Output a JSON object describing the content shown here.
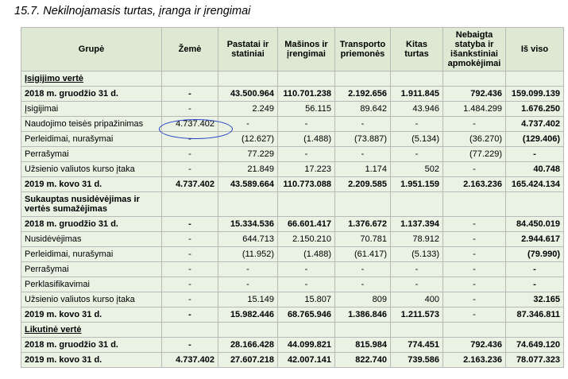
{
  "title": "15.7. Nekilnojamasis turtas, įranga ir įrengimai",
  "headers": [
    "Grupė",
    "Žemė",
    "Pastatai ir statiniai",
    "Mašinos ir įrengimai",
    "Transporto priemonės",
    "Kitas turtas",
    "Nebaigta statyba ir išankstiniai apmokėjimai",
    "Iš viso"
  ],
  "rows": [
    {
      "type": "section",
      "cells": [
        "Įsigijimo vertė"
      ]
    },
    {
      "type": "bold",
      "cells": [
        "2018 m. gruodžio 31 d.",
        "-",
        "43.500.964",
        "110.701.238",
        "2.192.656",
        "1.911.845",
        "792.436",
        "159.099.139"
      ]
    },
    {
      "type": "normal",
      "cells": [
        "Įsigijimai",
        "-",
        "2.249",
        "56.115",
        "89.642",
        "43.946",
        "1.484.299",
        "1.676.250"
      ]
    },
    {
      "type": "normal",
      "cells": [
        "Naudojimo teisės pripažinimas",
        "4.737.402",
        "-",
        "-",
        "-",
        "-",
        "-",
        "4.737.402"
      ]
    },
    {
      "type": "normal",
      "cells": [
        "Perleidimai, nurašymai",
        "-",
        "(12.627)",
        "(1.488)",
        "(73.887)",
        "(5.134)",
        "(36.270)",
        "(129.406)"
      ]
    },
    {
      "type": "normal",
      "cells": [
        "Perrašymai",
        "-",
        "77.229",
        "-",
        "-",
        "-",
        "(77.229)",
        "-"
      ]
    },
    {
      "type": "normal",
      "cells": [
        "Užsienio valiutos kurso įtaka",
        "-",
        "21.849",
        "17.223",
        "1.174",
        "502",
        "-",
        "40.748"
      ]
    },
    {
      "type": "bold",
      "cells": [
        "2019 m. kovo 31 d.",
        "4.737.402",
        "43.589.664",
        "110.773.088",
        "2.209.585",
        "1.951.159",
        "2.163.236",
        "165.424.134"
      ]
    },
    {
      "type": "section2",
      "cells": [
        "Sukauptas nusidėvėjimas ir vertės sumažėjimas"
      ]
    },
    {
      "type": "bold",
      "cells": [
        "2018 m. gruodžio 31 d.",
        "-",
        "15.334.536",
        "66.601.417",
        "1.376.672",
        "1.137.394",
        "-",
        "84.450.019"
      ]
    },
    {
      "type": "normal",
      "cells": [
        "Nusidėvėjimas",
        "-",
        "644.713",
        "2.150.210",
        "70.781",
        "78.912",
        "-",
        "2.944.617"
      ]
    },
    {
      "type": "normal",
      "cells": [
        "Perleidimai, nurašymai",
        "-",
        "(11.952)",
        "(1.488)",
        "(61.417)",
        "(5.133)",
        "-",
        "(79.990)"
      ]
    },
    {
      "type": "normal",
      "cells": [
        "Perrašymai",
        "-",
        "-",
        "-",
        "-",
        "-",
        "-",
        "-"
      ]
    },
    {
      "type": "normal",
      "cells": [
        "Perklasifikavimai",
        "-",
        "-",
        "-",
        "-",
        "-",
        "-",
        "-"
      ]
    },
    {
      "type": "normal",
      "cells": [
        "Užsienio valiutos kurso įtaka",
        "-",
        "15.149",
        "15.807",
        "809",
        "400",
        "-",
        "32.165"
      ]
    },
    {
      "type": "bold",
      "cells": [
        "2019 m. kovo 31 d.",
        "-",
        "15.982.446",
        "68.765.946",
        "1.386.846",
        "1.211.573",
        "-",
        "87.346.811"
      ]
    },
    {
      "type": "section",
      "cells": [
        "Likutinė vertė"
      ]
    },
    {
      "type": "bold",
      "cells": [
        "2018 m. gruodžio 31 d.",
        "-",
        "28.166.428",
        "44.099.821",
        "815.984",
        "774.451",
        "792.436",
        "74.649.120"
      ]
    },
    {
      "type": "bold",
      "cells": [
        "2019 m. kovo 31 d.",
        "4.737.402",
        "27.607.218",
        "42.007.141",
        "822.740",
        "739.586",
        "2.163.236",
        "78.077.323"
      ]
    }
  ]
}
